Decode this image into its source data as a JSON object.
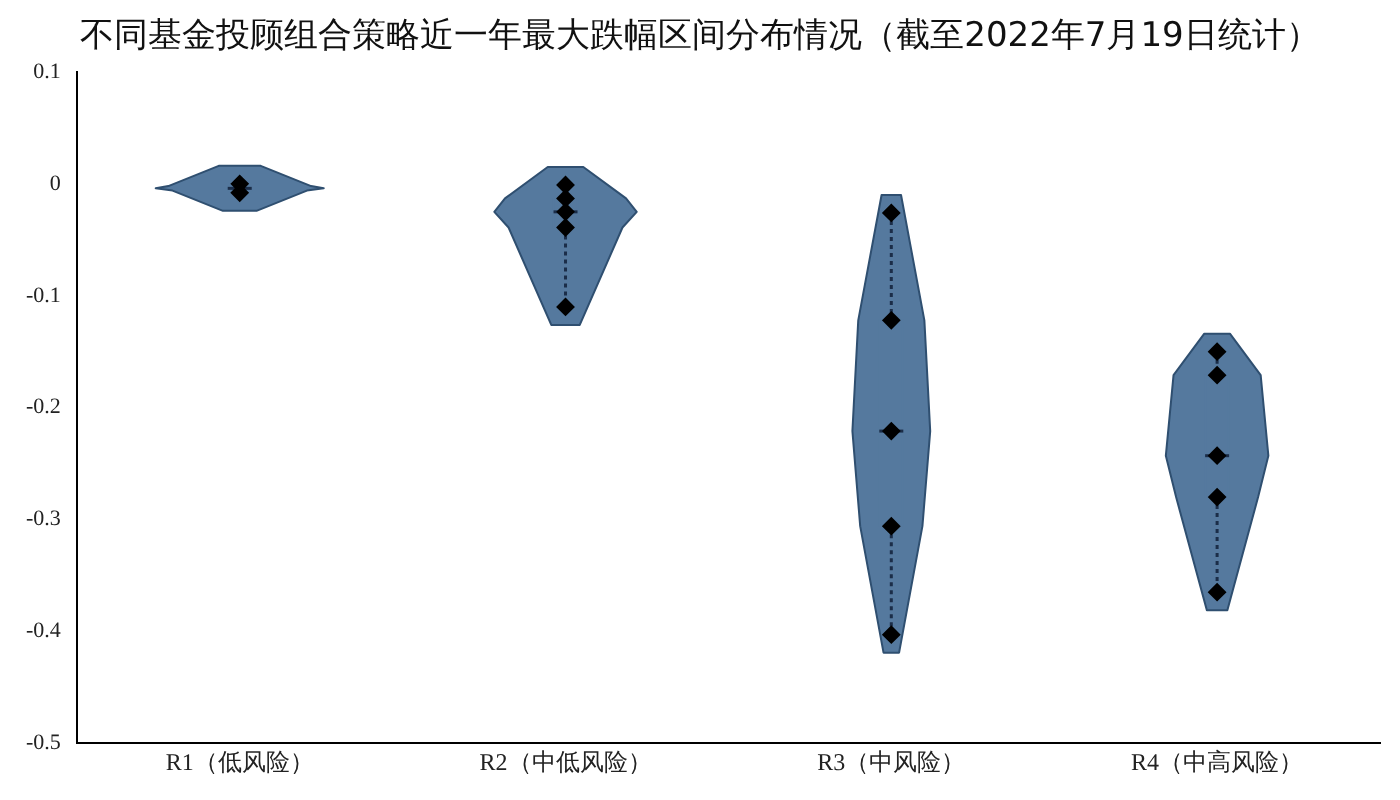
{
  "chart_data": {
    "type": "box",
    "title": "不同基金投顾组合策略近一年最大跌幅区间分布情况（截至2022年7月19日统计）",
    "categories": [
      "R1（低风险）",
      "R2（中低风险）",
      "R3（中风险）",
      "R4（中高风险）"
    ],
    "ylim": [
      -0.5,
      0.1
    ],
    "yticks": [
      0.1,
      0,
      -0.1,
      -0.2,
      -0.3,
      -0.4,
      -0.5
    ],
    "grid": false,
    "legend": false,
    "marker": "diamond",
    "line_style": "dotted",
    "series": [
      {
        "type": "box",
        "color": "#55799e",
        "boxes": [
          {
            "low": -0.008,
            "q1": -0.006,
            "median": -0.004,
            "q3": -0.002,
            "high": 0
          },
          {
            "low": -0.11,
            "q1": -0.039,
            "median": -0.025,
            "q3": -0.013,
            "high": -0.001
          },
          {
            "low": -0.403,
            "q1": -0.306,
            "median": -0.221,
            "q3": -0.122,
            "high": -0.026
          },
          {
            "low": -0.365,
            "q1": -0.28,
            "median": -0.243,
            "q3": -0.171,
            "high": -0.15
          }
        ]
      },
      {
        "type": "scatter",
        "color": "#000000",
        "x": [
          "R1（低风险）",
          "R1（低风险）",
          "R1（低风险）",
          "R1（低风险）",
          "R1（低风险）",
          "R2（中低风险）",
          "R2（中低风险）",
          "R2（中低风险）",
          "R2（中低风险）",
          "R2（中低风险）",
          "R3（中风险）",
          "R3（中风险）",
          "R3（中风险）",
          "R3（中风险）",
          "R3（中风险）",
          "R4（中高风险）",
          "R4（中高风险）",
          "R4（中高风险）",
          "R4（中高风险）",
          "R4（中高风险）"
        ],
        "values": [
          0,
          null,
          null,
          null,
          -0.008,
          -0.001,
          -0.013,
          -0.025,
          -0.039,
          -0.11,
          -0.026,
          -0.122,
          -0.221,
          -0.306,
          -0.403,
          -0.15,
          -0.171,
          -0.243,
          -0.28,
          -0.365
        ]
      }
    ]
  }
}
